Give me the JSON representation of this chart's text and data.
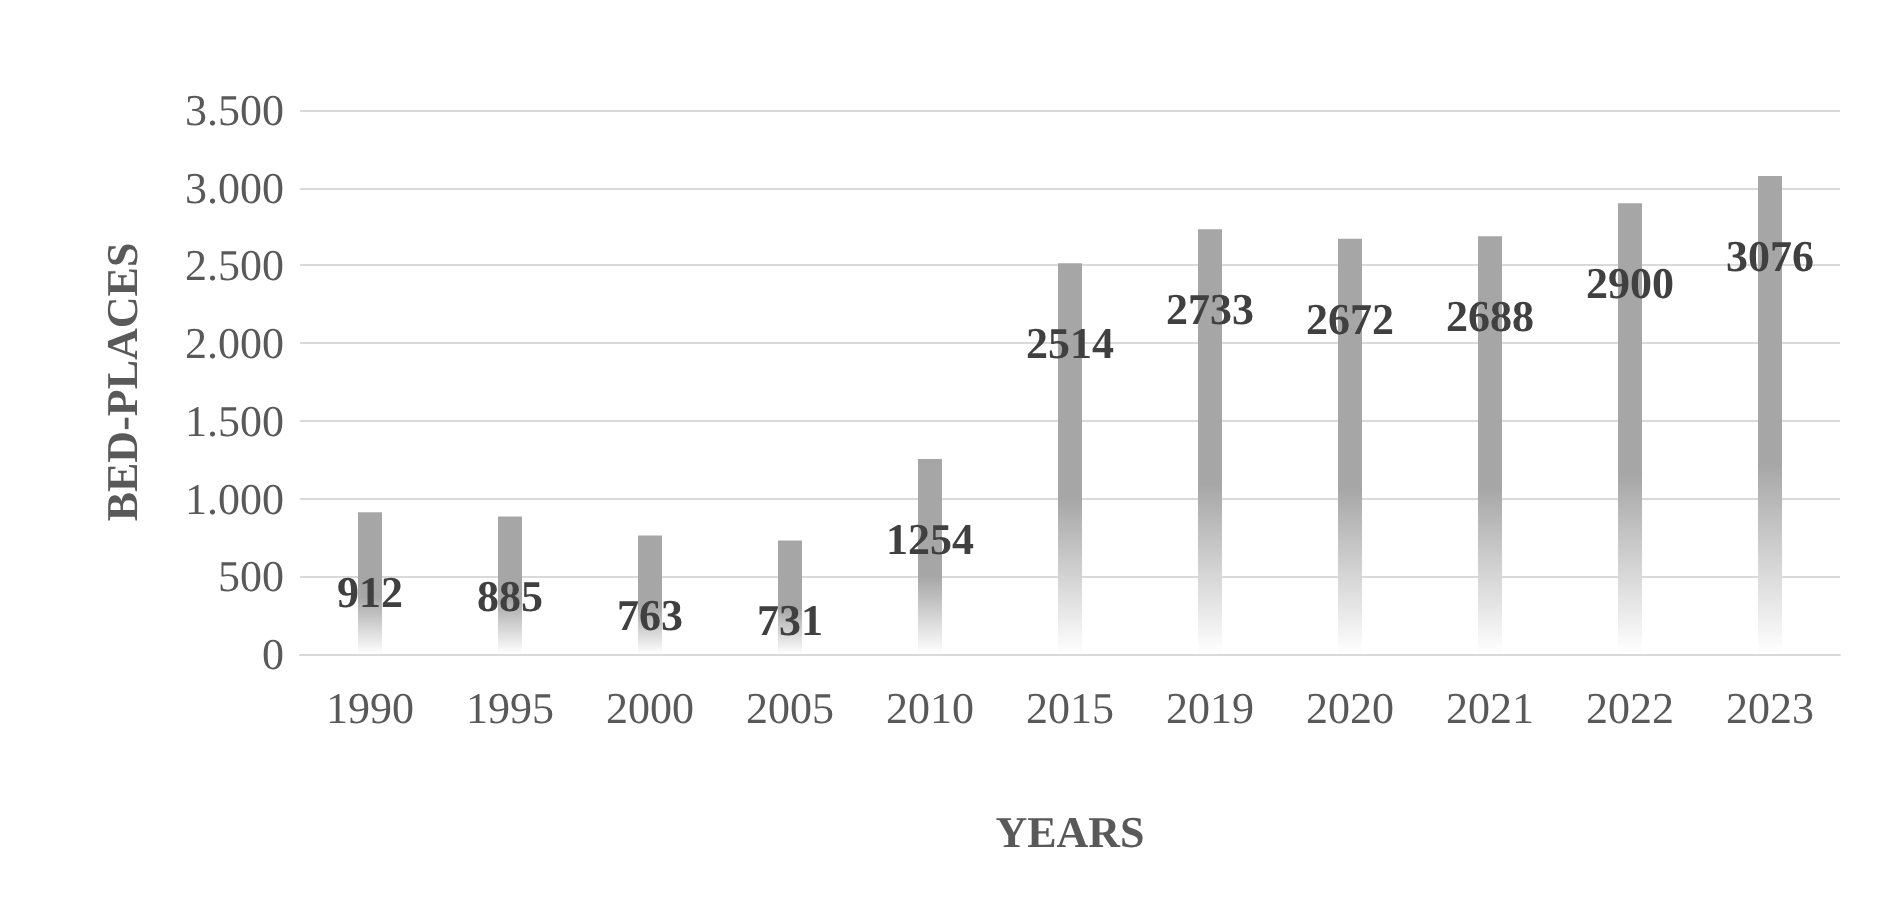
{
  "chart_data": {
    "type": "bar",
    "xlabel": "YEARS",
    "ylabel": "BED-PLACES",
    "categories": [
      "1990",
      "1995",
      "2000",
      "2005",
      "2010",
      "2015",
      "2019",
      "2020",
      "2021",
      "2022",
      "2023"
    ],
    "values": [
      912,
      885,
      763,
      731,
      1254,
      2514,
      2733,
      2672,
      2688,
      2900,
      3076
    ],
    "color": "#a6a6a6",
    "ylim": [
      0,
      3500
    ],
    "yticks": [
      {
        "value": 0,
        "label": "0"
      },
      {
        "value": 500,
        "label": "500"
      },
      {
        "value": 1000,
        "label": "1.000"
      },
      {
        "value": 1500,
        "label": "1.500"
      },
      {
        "value": 2000,
        "label": "2.000"
      },
      {
        "value": 2500,
        "label": "2.500"
      },
      {
        "value": 3000,
        "label": "3.000"
      },
      {
        "value": 3500,
        "label": "3.500"
      }
    ],
    "grid": true,
    "data_labels": true
  }
}
